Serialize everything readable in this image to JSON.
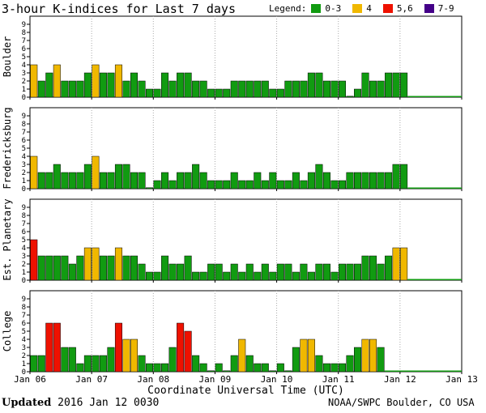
{
  "title": "3-hour K-indices for Last 7 days",
  "legend": {
    "label": "Legend:",
    "items": [
      {
        "text": "0-3",
        "color": "#119b11"
      },
      {
        "text": "4",
        "color": "#f0b800"
      },
      {
        "text": "5,6",
        "color": "#ee1100"
      },
      {
        "text": "7-9",
        "color": "#440088"
      }
    ]
  },
  "footer": {
    "updated_label": "Updated",
    "updated_value": "2016 Jan 12 0030",
    "source": "NOAA/SWPC Boulder, CO USA"
  },
  "chart_data": {
    "type": "bar",
    "xlabel": "Coordinate Universal Time (UTC)",
    "x_ticks": [
      "Jan 06",
      "Jan 07",
      "Jan 08",
      "Jan 09",
      "Jan 10",
      "Jan 11",
      "Jan 12",
      "Jan 13"
    ],
    "y_ticks": [
      "0",
      "1",
      "2",
      "3",
      "4",
      "5",
      "6",
      "7",
      "8",
      "9"
    ],
    "ylim": [
      0,
      9
    ],
    "color_scale": {
      "0-3": "#119b11",
      "4": "#f0b800",
      "5-6": "#ee1100",
      "7-9": "#440088"
    },
    "series": [
      {
        "name": "Boulder",
        "values": [
          4,
          2,
          3,
          4,
          2,
          2,
          2,
          3,
          4,
          3,
          3,
          4,
          2,
          3,
          2,
          1,
          1,
          3,
          2,
          3,
          3,
          2,
          2,
          1,
          1,
          1,
          2,
          2,
          2,
          2,
          2,
          1,
          1,
          2,
          2,
          2,
          3,
          3,
          2,
          2,
          2,
          0,
          1,
          3,
          2,
          2,
          3,
          3,
          3
        ]
      },
      {
        "name": "Fredericksburg",
        "values": [
          4,
          2,
          2,
          3,
          2,
          2,
          2,
          3,
          4,
          2,
          2,
          3,
          3,
          2,
          2,
          0,
          1,
          2,
          1,
          2,
          2,
          3,
          2,
          1,
          1,
          1,
          2,
          1,
          1,
          2,
          1,
          2,
          1,
          1,
          2,
          1,
          2,
          3,
          2,
          1,
          1,
          2,
          2,
          2,
          2,
          2,
          2,
          3,
          3
        ]
      },
      {
        "name": "Est. Planetary",
        "values": [
          5,
          3,
          3,
          3,
          3,
          2,
          3,
          4,
          4,
          3,
          3,
          4,
          3,
          3,
          2,
          1,
          1,
          3,
          2,
          2,
          3,
          1,
          1,
          2,
          2,
          1,
          2,
          1,
          2,
          1,
          2,
          1,
          2,
          2,
          1,
          2,
          1,
          2,
          2,
          1,
          2,
          2,
          2,
          3,
          3,
          2,
          3,
          4,
          4
        ]
      },
      {
        "name": "College",
        "values": [
          2,
          2,
          6,
          6,
          3,
          3,
          1,
          2,
          2,
          2,
          3,
          6,
          4,
          4,
          2,
          1,
          1,
          1,
          3,
          6,
          5,
          2,
          1,
          0,
          1,
          0,
          2,
          4,
          2,
          1,
          1,
          0,
          1,
          0,
          3,
          4,
          4,
          2,
          1,
          1,
          1,
          2,
          3,
          4,
          4,
          3
        ]
      }
    ]
  }
}
